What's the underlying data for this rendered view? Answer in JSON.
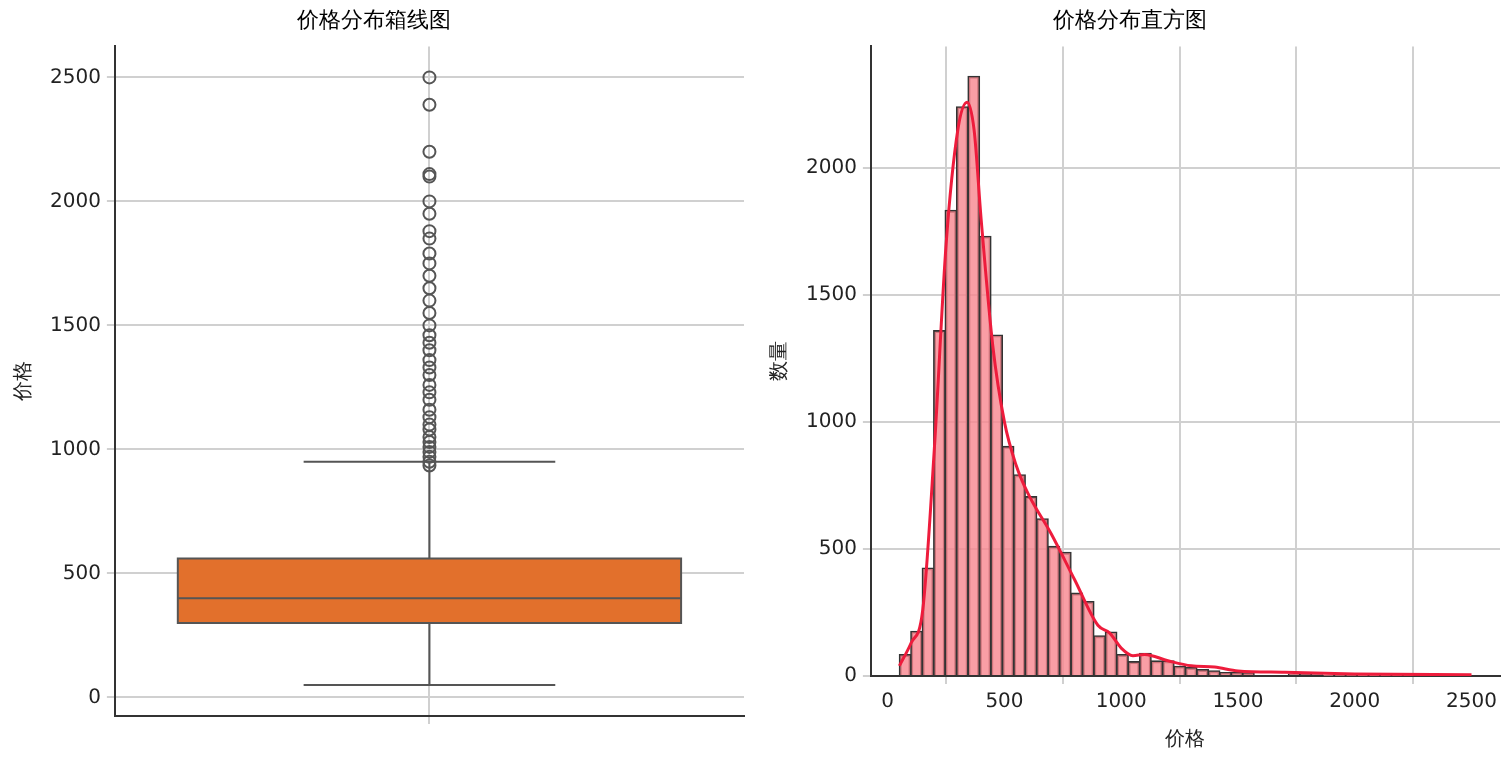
{
  "chart_data": [
    {
      "type": "box",
      "title": "价格分布箱线图",
      "ylabel": "价格",
      "categories": [
        null
      ],
      "color": "#e2702c",
      "boxes": [
        {
          "low": 50,
          "q1": 300,
          "median": 400,
          "q3": 560,
          "high": 950,
          "outliers": [
            935,
            950,
            970,
            990,
            1010,
            1030,
            1050,
            1080,
            1100,
            1130,
            1160,
            1200,
            1230,
            1260,
            1300,
            1330,
            1360,
            1400,
            1430,
            1460,
            1500,
            1550,
            1600,
            1650,
            1700,
            1750,
            1790,
            1850,
            1880,
            1950,
            2000,
            2100,
            2110,
            2200,
            2390,
            2500
          ]
        }
      ],
      "ylim": [
        -75,
        2625
      ],
      "yticks": [
        0,
        500,
        1000,
        1500,
        2000,
        2500
      ],
      "grid": true
    },
    {
      "type": "histogram",
      "title": "价格分布直方图",
      "xlabel": "价格",
      "ylabel": "数量",
      "color": "#f8868e",
      "bins": [
        50,
        99,
        148,
        197,
        246,
        295,
        344,
        393,
        442,
        491,
        540,
        589,
        638,
        687,
        736,
        785,
        834,
        883,
        932,
        981,
        1030,
        1079,
        1128,
        1177,
        1226,
        1275,
        1324,
        1373,
        1422,
        1471,
        1520,
        1569,
        1618,
        1667,
        1716,
        1765,
        1814,
        1863,
        1912,
        1961,
        2010,
        2059,
        2108,
        2157,
        2206,
        2255,
        2304,
        2353,
        2402,
        2451,
        2500
      ],
      "values": [
        84,
        176,
        425,
        1360,
        1834,
        2242,
        2362,
        1732,
        1343,
        904,
        792,
        706,
        619,
        510,
        487,
        326,
        293,
        158,
        173,
        84,
        56,
        89,
        59,
        59,
        38,
        33,
        25,
        20,
        13,
        13,
        10,
        null,
        null,
        null,
        6,
        5,
        4,
        3,
        3,
        3,
        2,
        2,
        2,
        2,
        1,
        null,
        1,
        1,
        1,
        2
      ],
      "series": [
        {
          "type": "line",
          "color": "#ee1c3c",
          "x": [
            50,
            100,
            150,
            200,
            250,
            300,
            340,
            370,
            400,
            450,
            500,
            550,
            600,
            700,
            800,
            900,
            950,
            1000,
            1050,
            1100,
            1200,
            1300,
            1400,
            1500,
            1700,
            2000,
            2500
          ],
          "values": [
            40,
            130,
            260,
            900,
            1700,
            2150,
            2260,
            2150,
            1800,
            1300,
            1000,
            830,
            720,
            560,
            380,
            200,
            170,
            110,
            80,
            85,
            60,
            40,
            35,
            20,
            15,
            8,
            5
          ]
        }
      ],
      "xlim": [
        -72,
        2622
      ],
      "xticks": [
        0,
        500,
        1000,
        1500,
        2000,
        2500
      ],
      "ylim": [
        0,
        2480
      ],
      "yticks": [
        0,
        500,
        1000,
        1500,
        2000
      ],
      "grid": true
    }
  ]
}
